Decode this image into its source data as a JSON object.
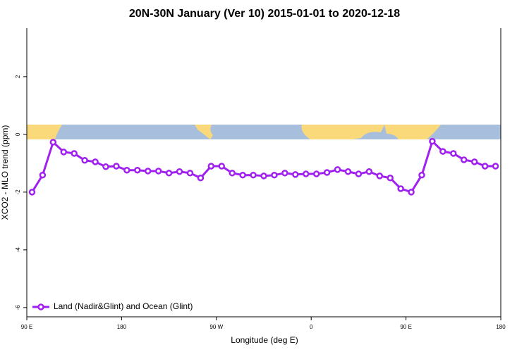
{
  "chart_data": {
    "type": "line",
    "title": "20N-30N January (Ver 10)   2015-01-01 to 2020-12-18",
    "xlabel": "Longitude (deg E)",
    "ylabel": "XCO2 - MLO trend (ppm)",
    "x": [
      95,
      105,
      115,
      125,
      135,
      145,
      155,
      165,
      175,
      185,
      195,
      205,
      215,
      225,
      235,
      245,
      255,
      265,
      275,
      285,
      295,
      305,
      315,
      325,
      335,
      345,
      355,
      365,
      375,
      385,
      395,
      405,
      415,
      425,
      435,
      445,
      455,
      465,
      475,
      485,
      495,
      505,
      515,
      525,
      535
    ],
    "series": [
      {
        "name": "Land (Nadir&Glint) and Ocean (Glint)",
        "color": "#a020f0",
        "values": [
          -2.0,
          -1.41,
          -0.27,
          -0.61,
          -0.66,
          -0.9,
          -0.95,
          -1.12,
          -1.1,
          -1.24,
          -1.24,
          -1.27,
          -1.27,
          -1.34,
          -1.29,
          -1.34,
          -1.51,
          -1.1,
          -1.1,
          -1.34,
          -1.41,
          -1.41,
          -1.44,
          -1.41,
          -1.34,
          -1.39,
          -1.37,
          -1.37,
          -1.32,
          -1.22,
          -1.29,
          -1.37,
          -1.29,
          -1.44,
          -1.51,
          -1.88,
          -2.0,
          -1.41,
          -0.24,
          -0.59,
          -0.66,
          -0.88,
          -0.95,
          -1.1,
          -1.1
        ]
      }
    ],
    "xlim": [
      90,
      540
    ],
    "xticks": [
      {
        "value": 90,
        "label": "90 E"
      },
      {
        "value": 180,
        "label": "180"
      },
      {
        "value": 270,
        "label": "90 W"
      },
      {
        "value": 360,
        "label": "0"
      },
      {
        "value": 450,
        "label": "90 E"
      },
      {
        "value": 540,
        "label": "180"
      }
    ],
    "ylim": [
      -6.32,
      3.68
    ],
    "yticks": [
      2,
      0,
      -2,
      -4,
      -6
    ],
    "legend": "lower left"
  }
}
